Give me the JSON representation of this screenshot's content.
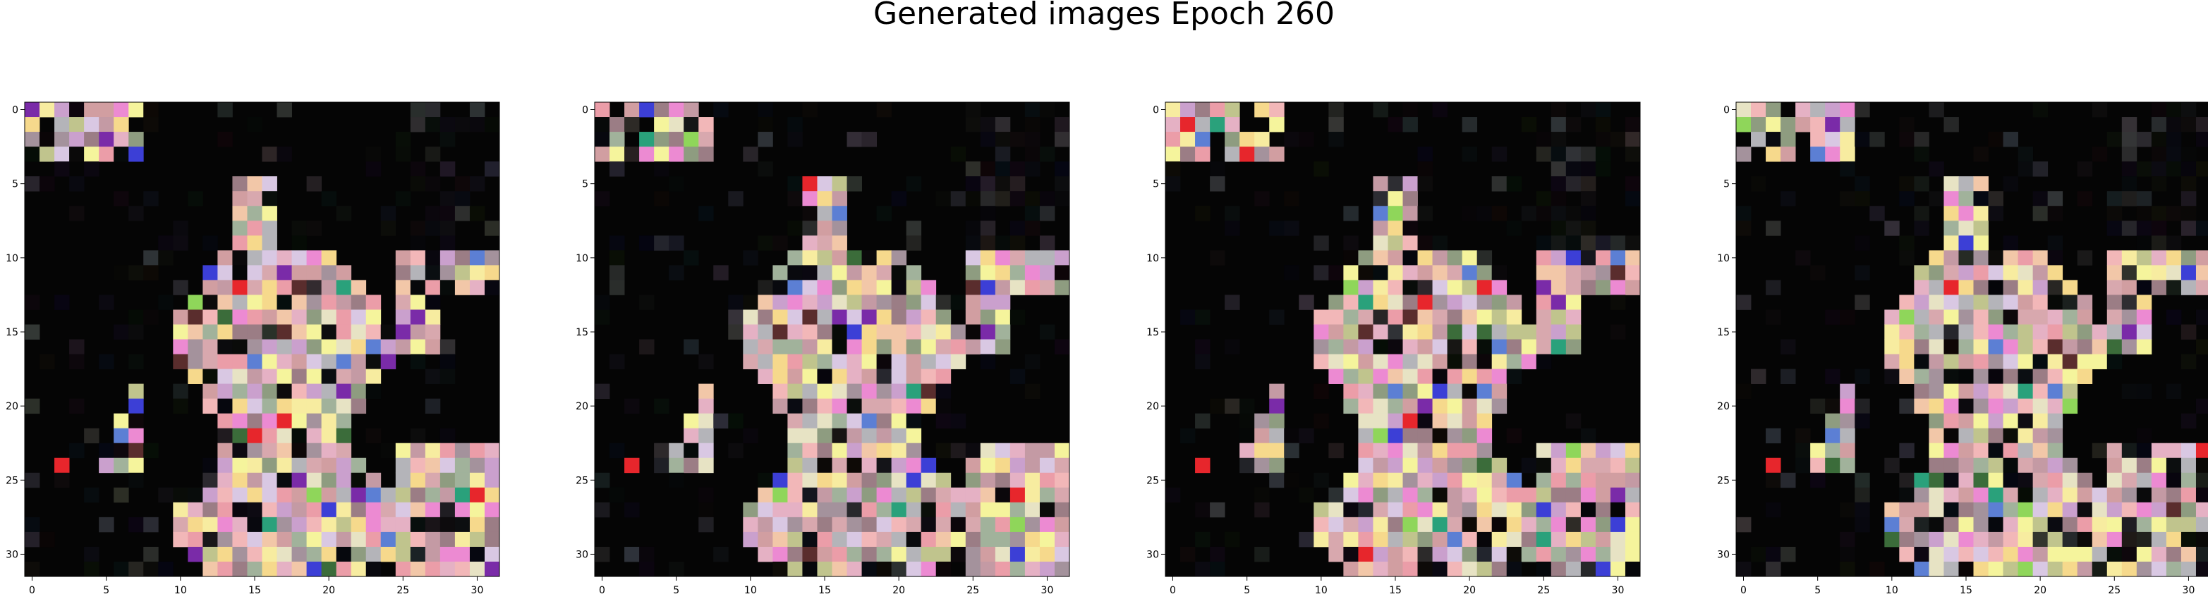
{
  "figure": {
    "title": "Generated images Epoch 260"
  },
  "axes": {
    "x_ticks": [
      "0",
      "5",
      "10",
      "15",
      "20",
      "25",
      "30"
    ],
    "y_ticks": [
      "0",
      "5",
      "10",
      "15",
      "20",
      "25",
      "30"
    ]
  },
  "chart_data": {
    "type": "heatmap",
    "grid": [
      32,
      32
    ],
    "panels": 4,
    "xlim": [
      -0.5,
      31.5
    ],
    "ylim": [
      31.5,
      -0.5
    ],
    "x_tick_values": [
      0,
      5,
      10,
      15,
      20,
      25,
      30
    ],
    "y_tick_values": [
      0,
      5,
      10,
      15,
      20,
      25,
      30
    ],
    "dark_color": "#050505",
    "palette": [
      "#f2c7a8",
      "#e5b1c4",
      "#f7eca0",
      "#c49aa4",
      "#a4929c",
      "#8e9c80",
      "#eb9da8",
      "#f6d98c",
      "#d8a8ae",
      "#ec8ad2",
      "#a1b29b",
      "#caa0cd",
      "#b4b4b9",
      "#f5f49c",
      "#9b7d85",
      "#d9c8e3",
      "#f2b7b8",
      "#c0c48d",
      "#e7e3c4",
      "#d19ea1"
    ],
    "accent_colors": [
      "#e7262c",
      "#3c3fd6",
      "#5c7fd4",
      "#3b6c3a",
      "#7a2ba8",
      "#2aa17b",
      "#8fd65a",
      "#5a2d2d"
    ]
  }
}
